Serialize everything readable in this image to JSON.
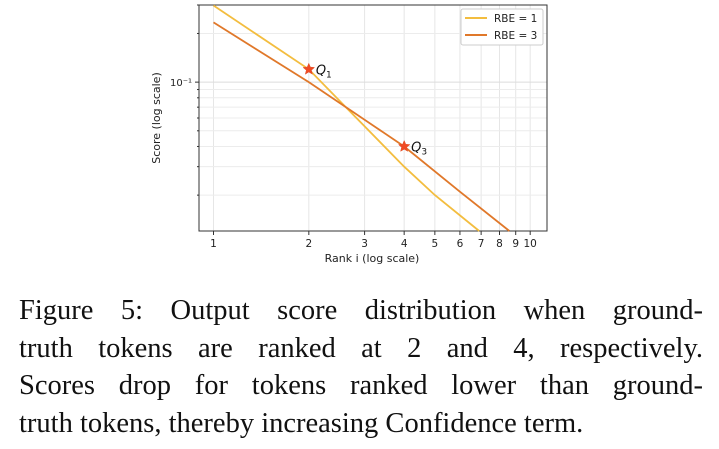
{
  "chart_data": {
    "type": "line",
    "title": "",
    "xlabel": "Rank i (log scale)",
    "ylabel": "Score (log scale)",
    "xscale": "log",
    "yscale": "log",
    "xlim": [
      0.9,
      11.3
    ],
    "ylim": [
      0.012,
      0.3
    ],
    "grid": true,
    "legend_position": "top-right",
    "x_ticks": [
      1,
      2,
      3,
      4,
      5,
      6,
      7,
      8,
      9,
      10
    ],
    "x_tick_labels": [
      "1",
      "2",
      "3",
      "4",
      "5",
      "6",
      "7",
      "8",
      "9",
      "10"
    ],
    "y_ticks": [
      0.1
    ],
    "y_tick_labels": [
      "10⁻¹"
    ],
    "series": [
      {
        "name": "RBE = 1",
        "color": "#f3bd3f",
        "x": [
          1,
          2,
          2.6,
          4,
          5,
          6.9
        ],
        "y": [
          0.298,
          0.12,
          0.071,
          0.03,
          0.02,
          0.012
        ]
      },
      {
        "name": "RBE = 3",
        "color": "#e0782a",
        "x": [
          1,
          2,
          4,
          6,
          8.6
        ],
        "y": [
          0.234,
          0.1,
          0.04,
          0.021,
          0.012
        ]
      }
    ],
    "annotations": [
      {
        "label": "Q",
        "subscript": "1",
        "x": 2,
        "y": 0.12,
        "marker": "star",
        "color": "#f04a23"
      },
      {
        "label": "Q",
        "subscript": "3",
        "x": 4,
        "y": 0.04,
        "marker": "star",
        "color": "#f04a23"
      }
    ]
  },
  "caption": {
    "lines": [
      "Figure 5:  Output score distribution when ground-",
      "truth tokens are ranked at 2 and 4, respectively.",
      "Scores drop for tokens ranked lower than ground-",
      "truth tokens, thereby increasing Confidence term."
    ]
  }
}
